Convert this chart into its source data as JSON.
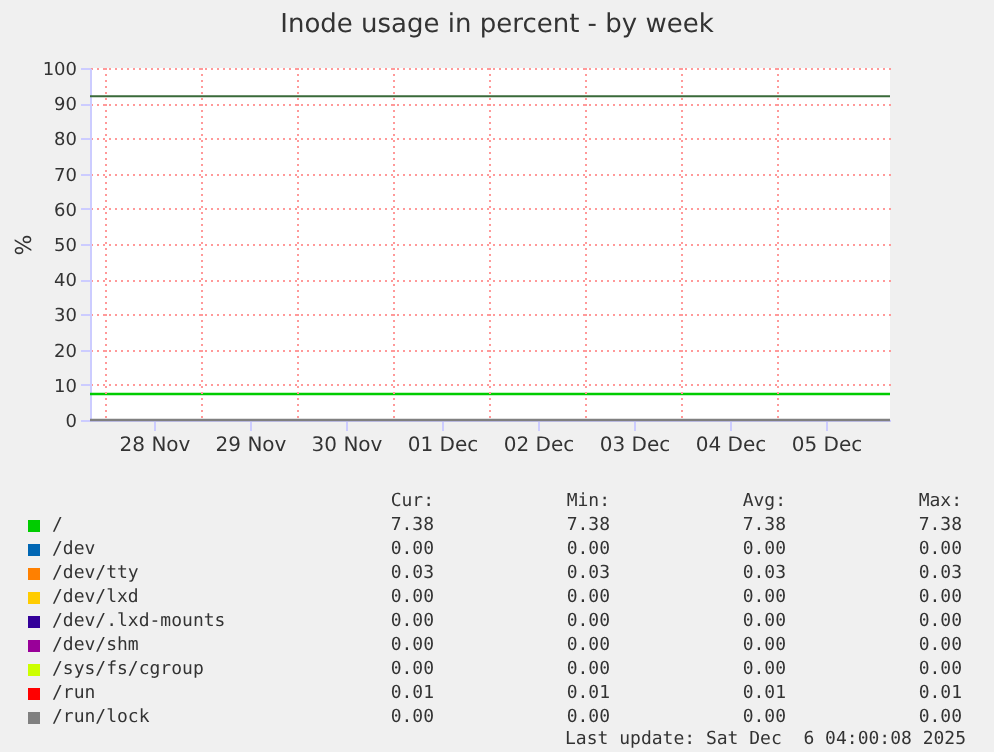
{
  "chart_data": {
    "type": "line",
    "title": "Inode usage in percent - by week",
    "ylabel": "%",
    "x": [
      "2025-11-27T20:00",
      "2025-12-06T04:00"
    ],
    "xlim": [
      "2025-11-27T20:00",
      "2025-12-06T04:00"
    ],
    "xticks": [
      {
        "value": "2025-11-28T12:00",
        "label": "28 Nov"
      },
      {
        "value": "2025-11-29T12:00",
        "label": "29 Nov"
      },
      {
        "value": "2025-11-30T12:00",
        "label": "30 Nov"
      },
      {
        "value": "2025-12-01T12:00",
        "label": "01 Dec"
      },
      {
        "value": "2025-12-02T12:00",
        "label": "02 Dec"
      },
      {
        "value": "2025-12-03T12:00",
        "label": "03 Dec"
      },
      {
        "value": "2025-12-04T12:00",
        "label": "04 Dec"
      },
      {
        "value": "2025-12-05T12:00",
        "label": "05 Dec"
      }
    ],
    "ylim": [
      0,
      100
    ],
    "yticks": [
      0,
      10,
      20,
      30,
      40,
      50,
      60,
      70,
      80,
      90,
      100
    ],
    "grid": true,
    "legend": "bottom",
    "ref_lines": [
      {
        "axis": "y",
        "value": 92,
        "color": "#3a6a3a"
      }
    ],
    "series": [
      {
        "name": "/",
        "color": "#00cc00",
        "values": [
          7.4,
          7.4
        ]
      },
      {
        "name": "/dev",
        "color": "#0066b3",
        "values": [
          null,
          null
        ]
      },
      {
        "name": "/dev/tty",
        "color": "#ff8000",
        "values": [
          null,
          null
        ]
      },
      {
        "name": "/dev/lxd",
        "color": "#ffcc00",
        "values": [
          null,
          null
        ]
      },
      {
        "name": "/dev/.lxd-mounts",
        "color": "#330099",
        "values": [
          null,
          null
        ]
      },
      {
        "name": "/dev/shm",
        "color": "#990099",
        "values": [
          null,
          null
        ]
      },
      {
        "name": "/sys/fs/cgroup",
        "color": "#ccff00",
        "values": [
          null,
          null
        ]
      },
      {
        "name": "/run",
        "color": "#ff0000",
        "values": [
          null,
          null
        ]
      },
      {
        "name": "/run/lock",
        "color": "#808080",
        "values": [
          0,
          0
        ]
      }
    ],
    "annotations": [
      "Cur:",
      "Min:",
      "Avg:",
      "Max:",
      "7.38",
      "7.38",
      "7.38",
      "7.38",
      "0.00",
      "0.00",
      "0.00",
      "0.00",
      "0.03",
      "0.03",
      "0.03",
      "0.03",
      "0.00",
      "0.00",
      "0.00",
      "0.00",
      "0.00",
      "0.00",
      "0.00",
      "0.00",
      "0.00",
      "0.00",
      "0.00",
      "0.00",
      "0.00",
      "0.00",
      "0.00",
      "0.00",
      "0.01",
      "0.01",
      "0.01",
      "0.01",
      "0.00",
      "0.00",
      "0.00",
      "0.00",
      "Last update: Sat Dec  6 04:00:08 2025"
    ]
  }
}
